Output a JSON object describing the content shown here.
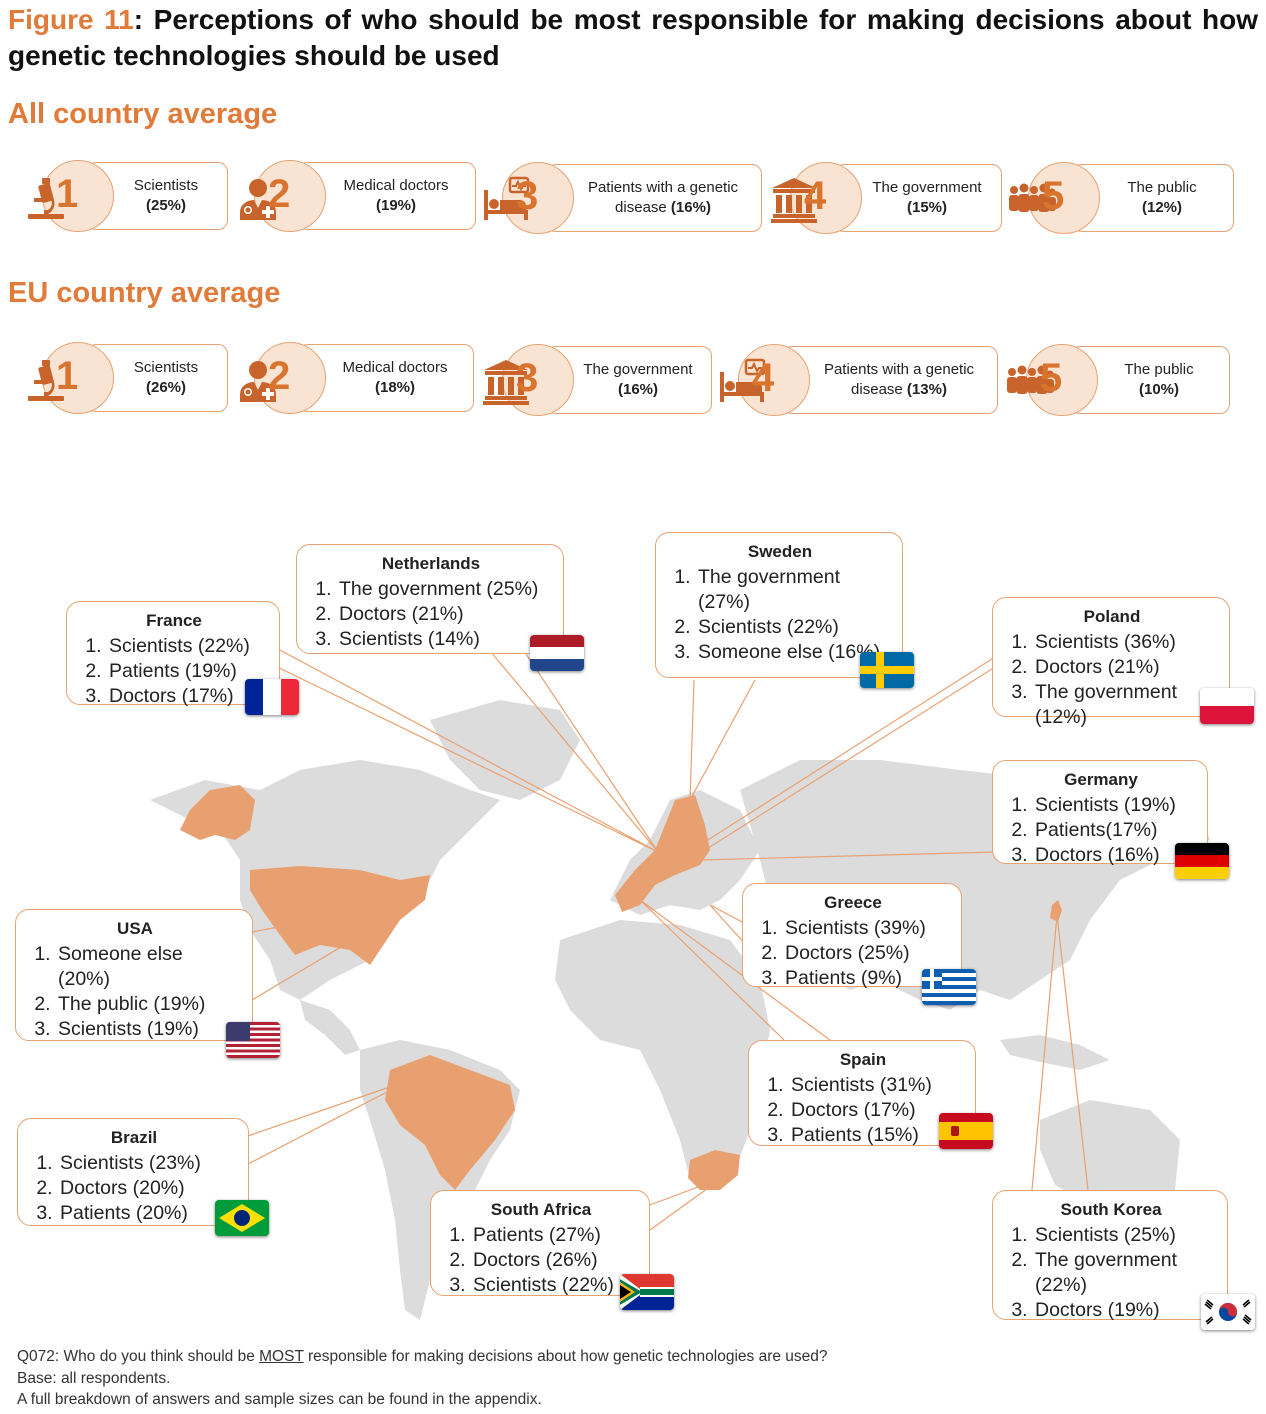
{
  "title": {
    "figure": "Figure 11",
    "text": ": Perceptions of who should be most responsible for making decisions about how genetic technologies should be used"
  },
  "all_avg": {
    "title": "All country average",
    "items": [
      {
        "rank": "1",
        "label": "Scientists",
        "pct": "(25%)",
        "icon": "microscope-icon"
      },
      {
        "rank": "2",
        "label": "Medical doctors",
        "pct": "(19%)",
        "icon": "doctor-icon"
      },
      {
        "rank": "3",
        "label": "Patients with a genetic disease",
        "pct": "(16%)",
        "icon": "patient-bed-icon"
      },
      {
        "rank": "4",
        "label": "The government",
        "pct": "(15%)",
        "icon": "government-building-icon"
      },
      {
        "rank": "5",
        "label": "The public",
        "pct": "(12%)",
        "icon": "crowd-icon"
      }
    ]
  },
  "eu_avg": {
    "title": "EU country average",
    "items": [
      {
        "rank": "1",
        "label": "Scientists",
        "pct": "(26%)",
        "icon": "microscope-icon"
      },
      {
        "rank": "2",
        "label": "Medical doctors",
        "pct": "(18%)",
        "icon": "doctor-icon"
      },
      {
        "rank": "3",
        "label": "The government",
        "pct": "(16%)",
        "icon": "government-building-icon"
      },
      {
        "rank": "4",
        "label": "Patients with a genetic disease",
        "pct": "(13%)",
        "icon": "patient-bed-icon"
      },
      {
        "rank": "5",
        "label": "The public",
        "pct": "(10%)",
        "icon": "crowd-icon"
      }
    ]
  },
  "countries": [
    {
      "name": "France",
      "items": [
        "Scientists (22%)",
        "Patients (19%)",
        "Doctors (17%)"
      ],
      "flag": "france-flag"
    },
    {
      "name": "Netherlands",
      "items": [
        "The government (25%)",
        "Doctors (21%)",
        "Scientists (14%)"
      ],
      "flag": "netherlands-flag"
    },
    {
      "name": "Sweden",
      "items": [
        "The government (27%)",
        "Scientists (22%)",
        "Someone else (16%)"
      ],
      "flag": "sweden-flag"
    },
    {
      "name": "Poland",
      "items": [
        "Scientists (36%)",
        "Doctors (21%)",
        "The government (12%)"
      ],
      "flag": "poland-flag"
    },
    {
      "name": "Germany",
      "items": [
        "Scientists (19%)",
        "Patients(17%)",
        "Doctors (16%)"
      ],
      "flag": "germany-flag"
    },
    {
      "name": "USA",
      "items": [
        "Someone else (20%)",
        "The public (19%)",
        "Scientists (19%)"
      ],
      "flag": "usa-flag"
    },
    {
      "name": "Greece",
      "items": [
        "Scientists (39%)",
        "Doctors (25%)",
        "Patients (9%)"
      ],
      "flag": "greece-flag"
    },
    {
      "name": "Spain",
      "items": [
        "Scientists (31%)",
        "Doctors (17%)",
        "Patients (15%)"
      ],
      "flag": "spain-flag"
    },
    {
      "name": "Brazil",
      "items": [
        "Scientists (23%)",
        "Doctors (20%)",
        "Patients (20%)"
      ],
      "flag": "brazil-flag"
    },
    {
      "name": "South Africa",
      "items": [
        "Patients (27%)",
        "Doctors (26%)",
        "Scientists (22%)"
      ],
      "flag": "south-africa-flag"
    },
    {
      "name": "South Korea",
      "items": [
        "Scientists (25%)",
        "The government (22%)",
        "Doctors (19%)"
      ],
      "flag": "south-korea-flag"
    }
  ],
  "colors": {
    "accent": "#e07b39",
    "highlight_country": "#e9a070",
    "map_land": "#dcdcdc",
    "circle_fill": "#f9e3d3"
  },
  "footer": {
    "q_prefix": "Q072: Who do you think should be ",
    "q_emph": "MOST",
    "q_suffix": " responsible for making decisions about how genetic technologies are used?",
    "base": "Base: all respondents.",
    "note": "A full breakdown of answers and sample sizes can be found in the appendix."
  }
}
